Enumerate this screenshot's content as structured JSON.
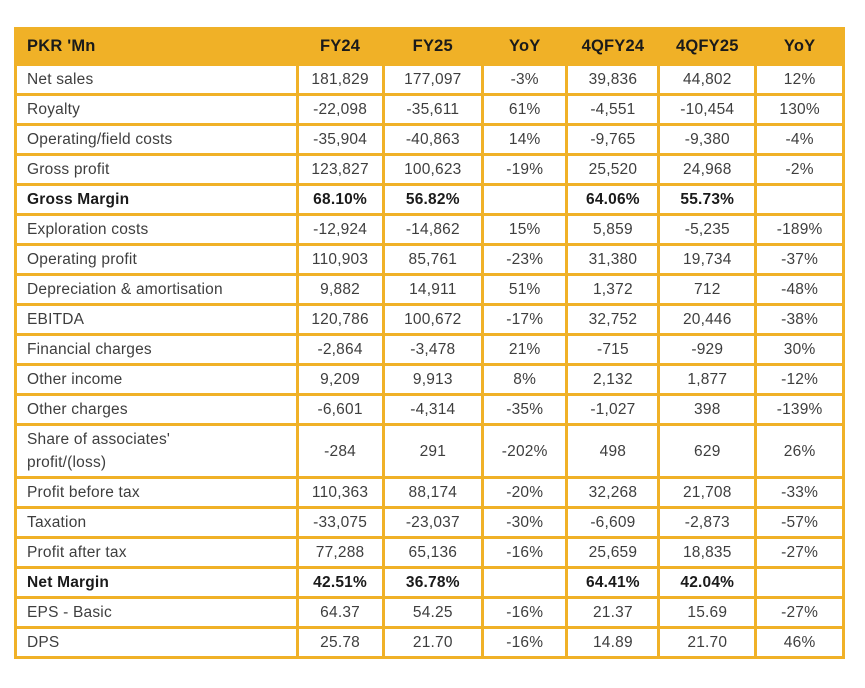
{
  "theme": {
    "accent_gold": "#F0B127",
    "grid_color": "#F0B127",
    "header_text": "#1A1A1A",
    "body_text": "#3E3E3E",
    "background": "#FFFFFF"
  },
  "table": {
    "unit_label": "PKR 'Mn",
    "columns": [
      "PKR 'Mn",
      "FY24",
      "FY25",
      "YoY",
      "4QFY24",
      "4QFY25",
      "YoY"
    ],
    "rows": [
      {
        "label": "Net sales",
        "bold": false,
        "values": [
          "181,829",
          "177,097",
          "-3%",
          "39,836",
          "44,802",
          "12%"
        ]
      },
      {
        "label": "Royalty",
        "bold": false,
        "values": [
          "-22,098",
          "-35,611",
          "61%",
          "-4,551",
          "-10,454",
          "130%"
        ]
      },
      {
        "label": "Operating/field costs",
        "bold": false,
        "values": [
          "-35,904",
          "-40,863",
          "14%",
          "-9,765",
          "-9,380",
          "-4%"
        ]
      },
      {
        "label": "Gross profit",
        "bold": false,
        "values": [
          "123,827",
          "100,623",
          "-19%",
          "25,520",
          "24,968",
          "-2%"
        ]
      },
      {
        "label": "Gross Margin",
        "bold": true,
        "values": [
          "68.10%",
          "56.82%",
          "",
          "64.06%",
          "55.73%",
          ""
        ]
      },
      {
        "label": "Exploration costs",
        "bold": false,
        "values": [
          "-12,924",
          "-14,862",
          "15%",
          "5,859",
          "-5,235",
          "-189%"
        ]
      },
      {
        "label": "Operating profit",
        "bold": false,
        "values": [
          "110,903",
          "85,761",
          "-23%",
          "31,380",
          "19,734",
          "-37%"
        ]
      },
      {
        "label": "Depreciation & amortisation",
        "bold": false,
        "values": [
          "9,882",
          "14,911",
          "51%",
          "1,372",
          "712",
          "-48%"
        ]
      },
      {
        "label": "EBITDA",
        "bold": false,
        "values": [
          "120,786",
          "100,672",
          "-17%",
          "32,752",
          "20,446",
          "-38%"
        ]
      },
      {
        "label": "Financial charges",
        "bold": false,
        "values": [
          "-2,864",
          "-3,478",
          "21%",
          "-715",
          "-929",
          "30%"
        ]
      },
      {
        "label": "Other income",
        "bold": false,
        "values": [
          "9,209",
          "9,913",
          "8%",
          "2,132",
          "1,877",
          "-12%"
        ]
      },
      {
        "label": "Other charges",
        "bold": false,
        "values": [
          "-6,601",
          "-4,314",
          "-35%",
          "-1,027",
          "398",
          "-139%"
        ]
      },
      {
        "label": "Share of associates'\nprofit/(loss)",
        "bold": false,
        "values": [
          "-284",
          "291",
          "-202%",
          "498",
          "629",
          "26%"
        ]
      },
      {
        "label": "Profit before tax",
        "bold": false,
        "values": [
          "110,363",
          "88,174",
          "-20%",
          "32,268",
          "21,708",
          "-33%"
        ]
      },
      {
        "label": "Taxation",
        "bold": false,
        "values": [
          "-33,075",
          "-23,037",
          "-30%",
          "-6,609",
          "-2,873",
          "-57%"
        ]
      },
      {
        "label": "Profit after tax",
        "bold": false,
        "values": [
          "77,288",
          "65,136",
          "-16%",
          "25,659",
          "18,835",
          "-27%"
        ]
      },
      {
        "label": "Net Margin",
        "bold": true,
        "values": [
          "42.51%",
          "36.78%",
          "",
          "64.41%",
          "42.04%",
          ""
        ]
      },
      {
        "label": "EPS - Basic",
        "bold": false,
        "values": [
          "64.37",
          "54.25",
          "-16%",
          "21.37",
          "15.69",
          "-27%"
        ]
      },
      {
        "label": "DPS",
        "bold": false,
        "values": [
          "25.78",
          "21.70",
          "-16%",
          "14.89",
          "21.70",
          "46%"
        ]
      }
    ]
  }
}
